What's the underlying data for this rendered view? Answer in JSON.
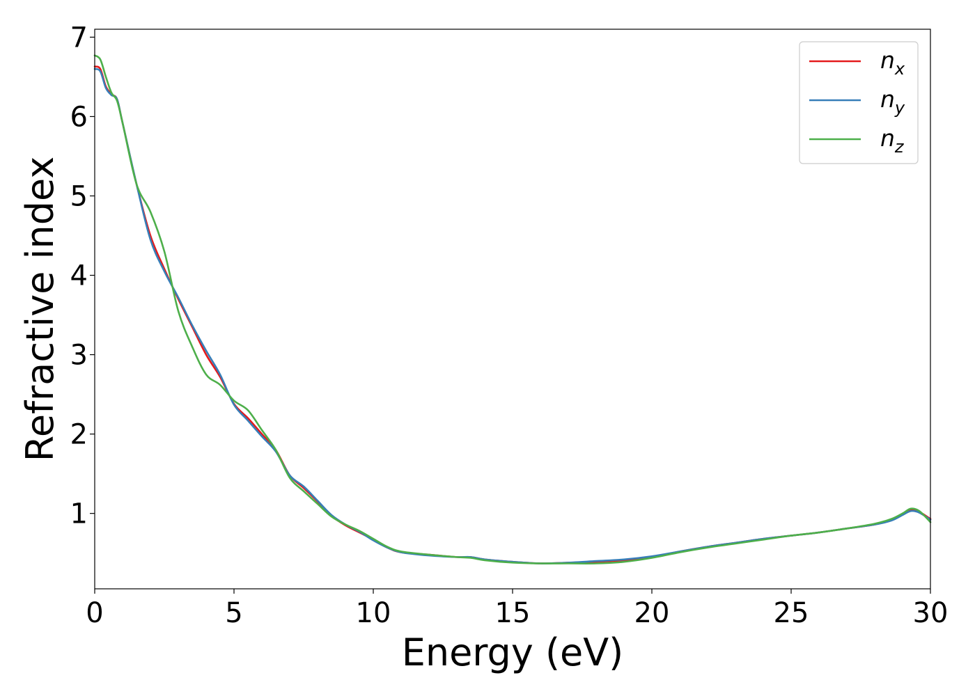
{
  "chart_data": {
    "type": "line",
    "title": "",
    "xlabel": "Energy (eV)",
    "ylabel": "Refractive index",
    "xlim": [
      0,
      30
    ],
    "ylim": [
      0.05,
      7.1
    ],
    "xticks": [
      0,
      5,
      10,
      15,
      20,
      25,
      30
    ],
    "yticks": [
      1,
      2,
      3,
      4,
      5,
      6,
      7
    ],
    "grid": false,
    "legend_position": "top-right",
    "series": [
      {
        "name": "n",
        "subscript": "x",
        "color": "#e41a1c",
        "points": [
          [
            0,
            6.63
          ],
          [
            0.2,
            6.6
          ],
          [
            0.4,
            6.38
          ],
          [
            0.6,
            6.28
          ],
          [
            0.8,
            6.22
          ],
          [
            1.0,
            5.92
          ],
          [
            1.5,
            5.15
          ],
          [
            2.0,
            4.5
          ],
          [
            2.5,
            4.08
          ],
          [
            3.0,
            3.7
          ],
          [
            3.5,
            3.35
          ],
          [
            4.0,
            3.0
          ],
          [
            4.5,
            2.72
          ],
          [
            5.0,
            2.38
          ],
          [
            5.5,
            2.2
          ],
          [
            6.0,
            2.0
          ],
          [
            6.5,
            1.8
          ],
          [
            7.0,
            1.48
          ],
          [
            7.5,
            1.32
          ],
          [
            8.0,
            1.15
          ],
          [
            8.5,
            0.97
          ],
          [
            9.0,
            0.85
          ],
          [
            9.5,
            0.76
          ],
          [
            10.0,
            0.67
          ],
          [
            10.5,
            0.57
          ],
          [
            11.0,
            0.51
          ],
          [
            12.0,
            0.48
          ],
          [
            13.0,
            0.45
          ],
          [
            13.5,
            0.45
          ],
          [
            14.0,
            0.42
          ],
          [
            15.0,
            0.39
          ],
          [
            16.0,
            0.37
          ],
          [
            17.0,
            0.38
          ],
          [
            18.0,
            0.39
          ],
          [
            19.0,
            0.41
          ],
          [
            20.0,
            0.45
          ],
          [
            21.0,
            0.52
          ],
          [
            22.0,
            0.58
          ],
          [
            23.0,
            0.63
          ],
          [
            24.0,
            0.68
          ],
          [
            25.0,
            0.72
          ],
          [
            26.0,
            0.76
          ],
          [
            27.0,
            0.81
          ],
          [
            28.0,
            0.86
          ],
          [
            28.6,
            0.92
          ],
          [
            29.0,
            0.99
          ],
          [
            29.3,
            1.04
          ],
          [
            29.6,
            1.02
          ],
          [
            30.0,
            0.93
          ]
        ]
      },
      {
        "name": "n",
        "subscript": "y",
        "color": "#377eb8",
        "points": [
          [
            0,
            6.6
          ],
          [
            0.2,
            6.57
          ],
          [
            0.4,
            6.36
          ],
          [
            0.6,
            6.27
          ],
          [
            0.8,
            6.22
          ],
          [
            1.0,
            5.92
          ],
          [
            1.5,
            5.15
          ],
          [
            2.0,
            4.45
          ],
          [
            2.5,
            4.05
          ],
          [
            3.0,
            3.72
          ],
          [
            3.5,
            3.37
          ],
          [
            4.0,
            3.05
          ],
          [
            4.5,
            2.75
          ],
          [
            5.0,
            2.37
          ],
          [
            5.5,
            2.17
          ],
          [
            6.0,
            1.97
          ],
          [
            6.5,
            1.78
          ],
          [
            7.0,
            1.48
          ],
          [
            7.5,
            1.34
          ],
          [
            8.0,
            1.16
          ],
          [
            8.5,
            0.98
          ],
          [
            9.0,
            0.86
          ],
          [
            9.5,
            0.77
          ],
          [
            10.0,
            0.66
          ],
          [
            10.5,
            0.57
          ],
          [
            11.0,
            0.51
          ],
          [
            12.0,
            0.47
          ],
          [
            13.0,
            0.45
          ],
          [
            13.5,
            0.45
          ],
          [
            14.0,
            0.42
          ],
          [
            15.0,
            0.39
          ],
          [
            16.0,
            0.37
          ],
          [
            17.0,
            0.38
          ],
          [
            18.0,
            0.4
          ],
          [
            19.0,
            0.42
          ],
          [
            20.0,
            0.46
          ],
          [
            21.0,
            0.52
          ],
          [
            22.0,
            0.58
          ],
          [
            23.0,
            0.63
          ],
          [
            24.0,
            0.68
          ],
          [
            25.0,
            0.72
          ],
          [
            26.0,
            0.76
          ],
          [
            27.0,
            0.81
          ],
          [
            28.0,
            0.86
          ],
          [
            28.6,
            0.91
          ],
          [
            29.0,
            0.98
          ],
          [
            29.3,
            1.03
          ],
          [
            29.6,
            1.01
          ],
          [
            30.0,
            0.92
          ]
        ]
      },
      {
        "name": "n",
        "subscript": "z",
        "color": "#4daf4a",
        "points": [
          [
            0,
            6.77
          ],
          [
            0.2,
            6.72
          ],
          [
            0.4,
            6.5
          ],
          [
            0.6,
            6.3
          ],
          [
            0.8,
            6.2
          ],
          [
            1.0,
            5.92
          ],
          [
            1.5,
            5.15
          ],
          [
            2.0,
            4.8
          ],
          [
            2.5,
            4.3
          ],
          [
            3.0,
            3.55
          ],
          [
            3.5,
            3.1
          ],
          [
            4.0,
            2.75
          ],
          [
            4.5,
            2.62
          ],
          [
            5.0,
            2.42
          ],
          [
            5.5,
            2.3
          ],
          [
            6.0,
            2.05
          ],
          [
            6.5,
            1.8
          ],
          [
            7.0,
            1.45
          ],
          [
            7.5,
            1.28
          ],
          [
            8.0,
            1.12
          ],
          [
            8.5,
            0.96
          ],
          [
            9.0,
            0.86
          ],
          [
            9.5,
            0.78
          ],
          [
            10.0,
            0.68
          ],
          [
            10.5,
            0.58
          ],
          [
            11.0,
            0.52
          ],
          [
            12.0,
            0.48
          ],
          [
            13.0,
            0.45
          ],
          [
            13.5,
            0.44
          ],
          [
            14.0,
            0.41
          ],
          [
            15.0,
            0.38
          ],
          [
            16.0,
            0.37
          ],
          [
            17.0,
            0.37
          ],
          [
            18.0,
            0.37
          ],
          [
            19.0,
            0.39
          ],
          [
            20.0,
            0.44
          ],
          [
            21.0,
            0.51
          ],
          [
            22.0,
            0.57
          ],
          [
            23.0,
            0.62
          ],
          [
            24.0,
            0.67
          ],
          [
            25.0,
            0.72
          ],
          [
            26.0,
            0.76
          ],
          [
            27.0,
            0.81
          ],
          [
            28.0,
            0.87
          ],
          [
            28.6,
            0.93
          ],
          [
            29.0,
            1.0
          ],
          [
            29.3,
            1.06
          ],
          [
            29.6,
            1.03
          ],
          [
            30.0,
            0.89
          ]
        ]
      }
    ]
  }
}
